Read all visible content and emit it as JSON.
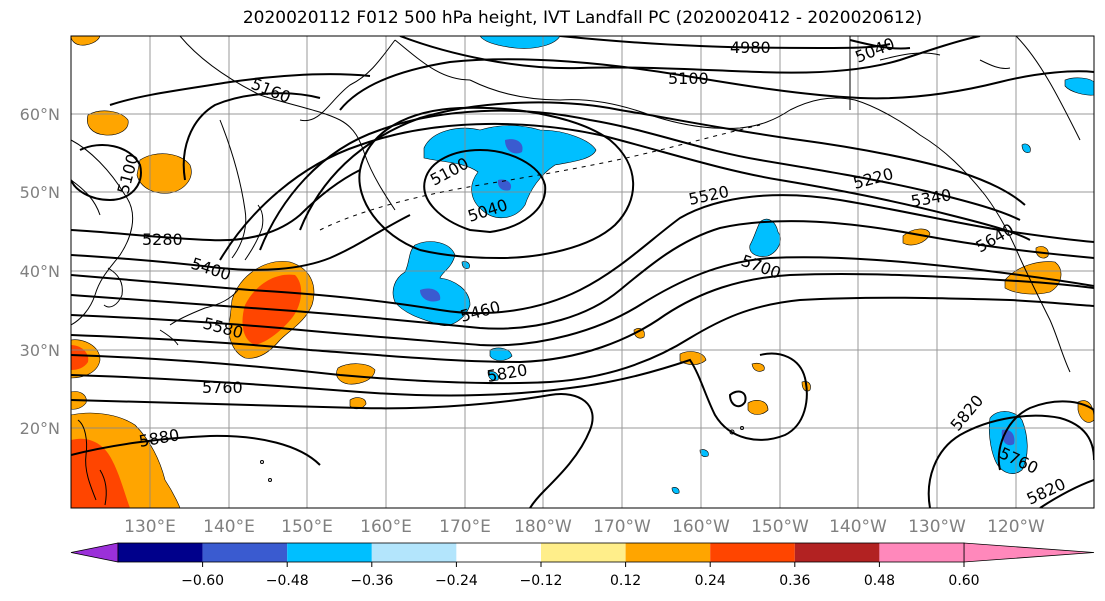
{
  "title": "2020020112 F012 500 hPa height, IVT Landfall PC (2020020412 - 2020020612)",
  "lat_labels": [
    "60°N",
    "50°N",
    "40°N",
    "30°N",
    "20°N"
  ],
  "lon_labels": [
    "130°E",
    "140°E",
    "150°E",
    "160°E",
    "170°E",
    "180°W",
    "170°W",
    "160°W",
    "150°W",
    "140°W",
    "130°W",
    "120°W"
  ],
  "contour_labels": [
    "4980",
    "5040",
    "5100",
    "5160",
    "5100",
    "5100",
    "5040",
    "5220",
    "5340",
    "5520",
    "5280",
    "5400",
    "5580",
    "5460",
    "5700",
    "5640",
    "5760",
    "5820",
    "5880",
    "5820",
    "5760",
    "5820"
  ],
  "colorbar": {
    "tick_labels": [
      "−0.60",
      "−0.48",
      "−0.36",
      "−0.24",
      "−0.12",
      "0.12",
      "0.24",
      "0.36",
      "0.48",
      "0.60"
    ],
    "colors": [
      "#9b30d9",
      "#00008b",
      "#3a5bd0",
      "#00bfff",
      "#b3e5fc",
      "#ffffff",
      "#ffee8a",
      "#ffa500",
      "#ff4500",
      "#b22222",
      "#ff88bb"
    ]
  }
}
